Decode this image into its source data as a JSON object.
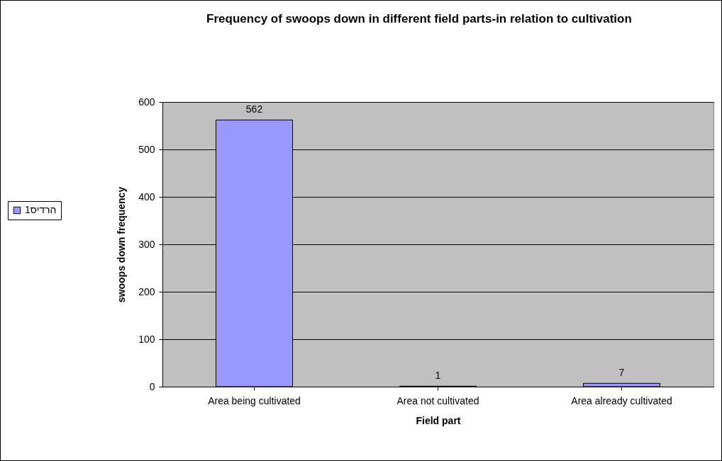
{
  "chart_data": {
    "type": "bar",
    "title": "Frequency of swoops down in different field parts-in relation to cultivation",
    "xlabel": "Field part",
    "ylabel": "swoops down frequency",
    "categories": [
      "Area being cultivated",
      "Area not cultivated",
      "Area already cultivated"
    ],
    "series": [
      {
        "name": "הרדיס1",
        "color": "#9999ff",
        "values": [
          562,
          1,
          7
        ]
      }
    ],
    "ylim": [
      0,
      600
    ],
    "yticks": [
      0,
      100,
      200,
      300,
      400,
      500,
      600
    ],
    "grid": "y",
    "legend": "left",
    "data_labels": true
  }
}
